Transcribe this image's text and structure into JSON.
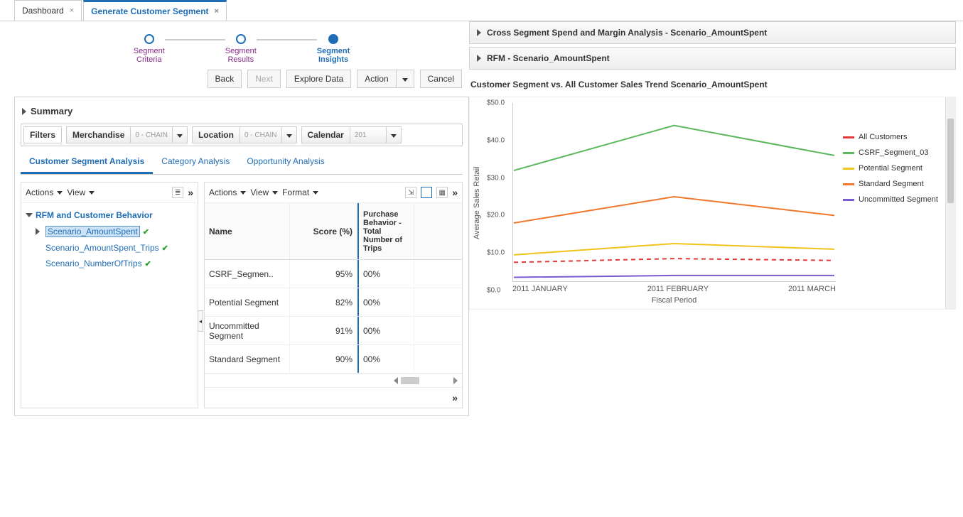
{
  "tabs": {
    "dashboard": "Dashboard",
    "generate": "Generate Customer Segment"
  },
  "wizard": {
    "criteria": "Segment\nCriteria",
    "results": "Segment\nResults",
    "insights": "Segment\nInsights"
  },
  "buttons": {
    "back": "Back",
    "next": "Next",
    "explore": "Explore Data",
    "action": "Action",
    "cancel": "Cancel"
  },
  "summary": "Summary",
  "filters": {
    "label": "Filters",
    "merch": {
      "label": "Merchandise",
      "value": "0 - CHAIN"
    },
    "loc": {
      "label": "Location",
      "value": "0 - CHAIN"
    },
    "cal": {
      "label": "Calendar",
      "value": "201"
    }
  },
  "subtabs": {
    "seg": "Customer Segment Analysis",
    "cat": "Category Analysis",
    "opp": "Opportunity Analysis"
  },
  "toolbar": {
    "actions": "Actions",
    "view": "View",
    "format": "Format"
  },
  "tree": {
    "root": "RFM and Customer Behavior",
    "items": [
      {
        "label": "Scenario_AmountSpent",
        "sel": true
      },
      {
        "label": "Scenario_AmountSpent_Trips",
        "sel": false
      },
      {
        "label": "Scenario_NumberOfTrips",
        "sel": false
      }
    ]
  },
  "grid": {
    "headers": {
      "name": "Name",
      "score": "Score (%)",
      "pb": "Purchase Behavior - Total Number of Trips"
    },
    "rows": [
      {
        "name": "CSRF_Segmen..",
        "score": "95%",
        "pb": "00%"
      },
      {
        "name": "Potential Segment",
        "score": "82%",
        "pb": "00%"
      },
      {
        "name": "Uncommitted Segment",
        "score": "91%",
        "pb": "00%"
      },
      {
        "name": "Standard Segment",
        "score": "90%",
        "pb": "00%"
      }
    ]
  },
  "right": {
    "panel1": "Cross Segment Spend and Margin Analysis - Scenario_AmountSpent",
    "panel2": "RFM - Scenario_AmountSpent",
    "chartTitle": "Customer Segment vs. All Customer Sales Trend Scenario_AmountSpent"
  },
  "chart": {
    "type": "line",
    "ylim": [
      0,
      50
    ],
    "ytick_step": 10,
    "ytick_labels": [
      "$0.0",
      "$10.0",
      "$20.0",
      "$30.0",
      "$40.0",
      "$50.0"
    ],
    "ylabel": "Average Sales Retail",
    "xlabel": "Fiscal Period",
    "x": [
      "2011 JANUARY",
      "2011 FEBRUARY",
      "2011 MARCH"
    ],
    "series": [
      {
        "name": "All Customers",
        "color": "#e03a3a",
        "dash": true,
        "values": [
          7.5,
          8.5,
          8.0
        ]
      },
      {
        "name": "CSRF_Segment_03",
        "color": "#5cb85c",
        "dash": false,
        "values": [
          32,
          44,
          36
        ]
      },
      {
        "name": "Potential Segment",
        "color": "#f0c419",
        "dash": false,
        "values": [
          9.5,
          12.5,
          11
        ]
      },
      {
        "name": "Standard Segment",
        "color": "#f0782d",
        "dash": false,
        "values": [
          18,
          25,
          20
        ]
      },
      {
        "name": "Uncommitted Segment",
        "color": "#7a5bd1",
        "dash": false,
        "values": [
          3.5,
          4,
          4
        ]
      }
    ],
    "background_color": "#ffffff",
    "axis_color": "#cccccc",
    "tick_fontsize": 10,
    "line_width": 2
  }
}
